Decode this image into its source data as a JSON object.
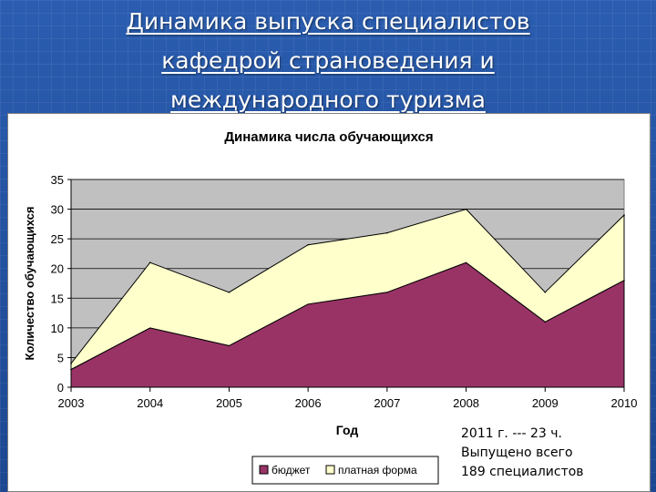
{
  "slide": {
    "title_lines": [
      "Динамика выпуска специалистов",
      "кафедрой страноведения и",
      "международного туризма"
    ]
  },
  "note_lines": [
    "2011 г. --- 23 ч.",
    " Выпущено  всего",
    "189 специалистов"
  ],
  "colors": {
    "budget": "#993366",
    "paid": "#ffffcc",
    "plot_bg": "#c0c0c0",
    "slide_bg": "#1f4e9a"
  },
  "chart_data": {
    "type": "area",
    "stacked": true,
    "title": "Динамика числа обучающихся",
    "xlabel": "Год",
    "ylabel": "Количество обучающихся",
    "x": [
      "2003",
      "2004",
      "2005",
      "2006",
      "2007",
      "2008",
      "2009",
      "2010"
    ],
    "ylim": [
      0,
      35
    ],
    "yticks": [
      0,
      5,
      10,
      15,
      20,
      25,
      30,
      35
    ],
    "grid": true,
    "legend_position": "bottom",
    "series": [
      {
        "name": "бюджет",
        "color": "#993366",
        "values": [
          3,
          10,
          7,
          14,
          16,
          21,
          11,
          18
        ]
      },
      {
        "name": "платная форма",
        "color": "#ffffcc",
        "values": [
          1,
          11,
          9,
          10,
          10,
          9,
          5,
          11
        ]
      }
    ]
  }
}
